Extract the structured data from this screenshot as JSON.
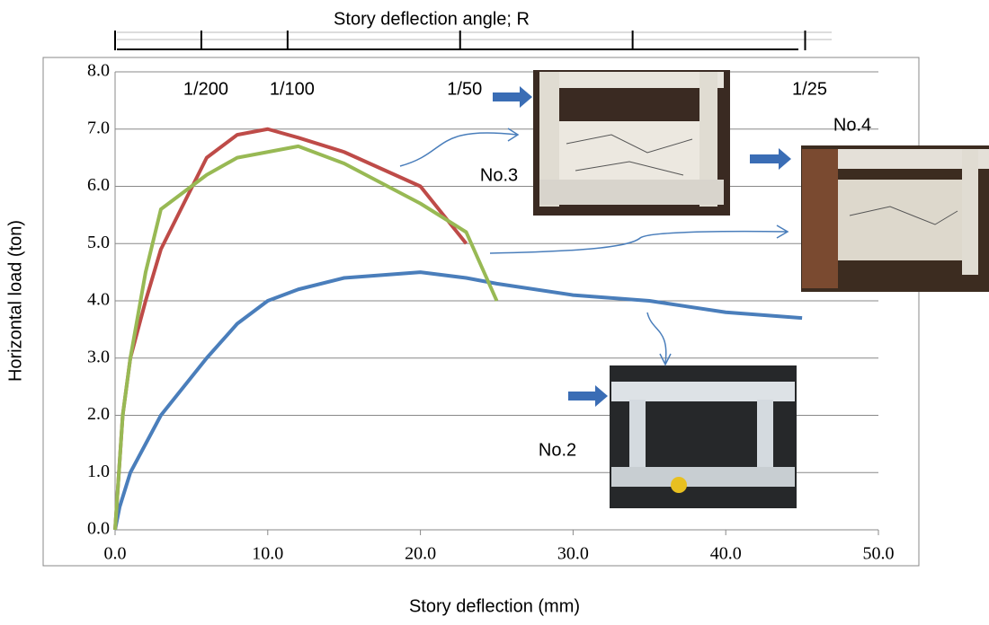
{
  "chart_data": {
    "type": "line",
    "xlabel": "Story deflection (mm)",
    "ylabel": "Horizontal load (ton)",
    "x2label": "Story deflection angle; R",
    "xlim": [
      0,
      50
    ],
    "ylim": [
      0,
      8
    ],
    "xticks": [
      {
        "value": 0,
        "label": "0.0"
      },
      {
        "value": 10,
        "label": "10.0"
      },
      {
        "value": 20,
        "label": "20.0"
      },
      {
        "value": 30,
        "label": "30.0"
      },
      {
        "value": 40,
        "label": "40.0"
      },
      {
        "value": 50,
        "label": "50.0"
      }
    ],
    "yticks": [
      {
        "value": 0,
        "label": "0.0"
      },
      {
        "value": 1,
        "label": "1.0"
      },
      {
        "value": 2,
        "label": "2.0"
      },
      {
        "value": 3,
        "label": "3.0"
      },
      {
        "value": 4,
        "label": "4.0"
      },
      {
        "value": 5,
        "label": "5.0"
      },
      {
        "value": 6,
        "label": "6.0"
      },
      {
        "value": 7,
        "label": "7.0"
      },
      {
        "value": 8,
        "label": "8.0"
      }
    ],
    "x2ticks": [
      0,
      {
        "value": 5.65,
        "label": "1/200"
      },
      {
        "value": 11.3,
        "label": "1/100"
      },
      {
        "value": 22.6,
        "label": "1/50"
      },
      33.9,
      {
        "value": 45.2,
        "label": "1/25"
      }
    ],
    "grid": true,
    "series": [
      {
        "color": "#4a7ebb",
        "x": [
          0,
          0.3,
          1,
          2,
          3,
          6,
          8,
          10,
          12,
          15,
          20,
          23,
          25,
          30,
          35,
          40,
          45
        ],
        "values": [
          0,
          0.4,
          1,
          1.5,
          2,
          3,
          3.6,
          4.0,
          4.2,
          4.4,
          4.5,
          4.4,
          4.3,
          4.1,
          4.0,
          3.8,
          3.7
        ]
      },
      {
        "color": "#be4b48",
        "x": [
          0,
          0.5,
          1,
          2,
          3,
          6,
          8,
          10,
          12,
          15,
          20,
          23
        ],
        "values": [
          0,
          2,
          3,
          4,
          4.9,
          6.5,
          6.9,
          7.0,
          6.85,
          6.6,
          6.0,
          5.0
        ]
      },
      {
        "color": "#98b954",
        "x": [
          0,
          0.5,
          1,
          2,
          3,
          6,
          8,
          12,
          15,
          20,
          23,
          25
        ],
        "values": [
          0,
          2,
          3,
          4.5,
          5.6,
          6.2,
          6.5,
          6.7,
          6.4,
          5.7,
          5.2,
          4.0
        ]
      }
    ],
    "annotations": [
      "No.3",
      "No.4",
      "No.2"
    ]
  }
}
